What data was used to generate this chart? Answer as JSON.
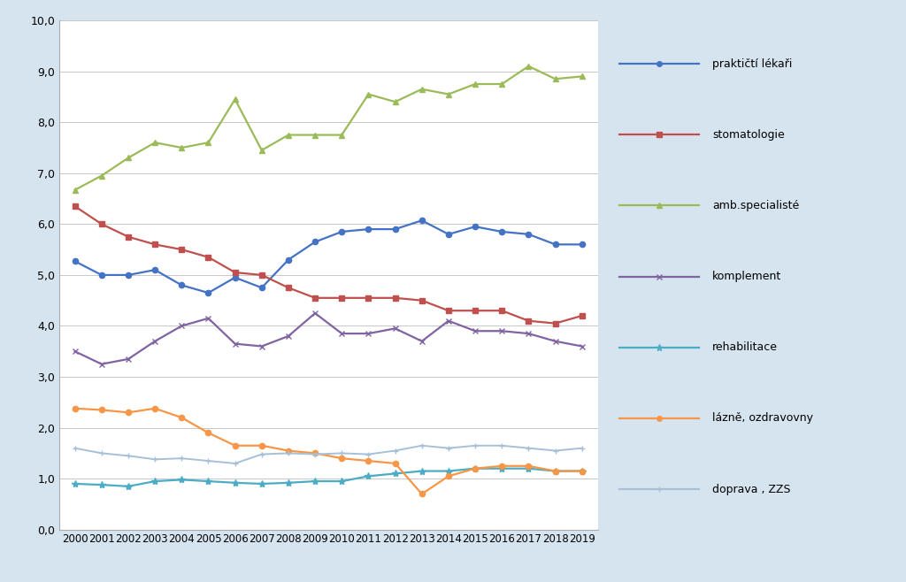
{
  "years": [
    2000,
    2001,
    2002,
    2003,
    2004,
    2005,
    2006,
    2007,
    2008,
    2009,
    2010,
    2011,
    2012,
    2013,
    2014,
    2015,
    2016,
    2017,
    2018,
    2019
  ],
  "series": {
    "praktičtí lékaři": {
      "values": [
        5.27,
        5.0,
        5.0,
        5.1,
        4.8,
        4.65,
        4.95,
        4.75,
        5.3,
        5.65,
        5.85,
        5.9,
        5.9,
        6.07,
        5.8,
        5.95,
        5.85,
        5.8,
        5.6,
        5.6
      ],
      "color": "#4472C4",
      "marker": "o",
      "markersize": 4.5,
      "linewidth": 1.6
    },
    "stomatologie": {
      "values": [
        6.35,
        6.0,
        5.75,
        5.6,
        5.5,
        5.35,
        5.05,
        5.0,
        4.75,
        4.55,
        4.55,
        4.55,
        4.55,
        4.5,
        4.3,
        4.3,
        4.3,
        4.1,
        4.05,
        4.2
      ],
      "color": "#C0504D",
      "marker": "s",
      "markersize": 4.5,
      "linewidth": 1.6
    },
    "amb.specialisté": {
      "values": [
        6.67,
        6.95,
        7.3,
        7.6,
        7.5,
        7.6,
        8.45,
        7.45,
        7.75,
        7.75,
        7.75,
        8.55,
        8.4,
        8.65,
        8.55,
        8.75,
        8.75,
        9.1,
        8.85,
        8.9
      ],
      "color": "#9BBB59",
      "marker": "^",
      "markersize": 5,
      "linewidth": 1.6
    },
    "komplement": {
      "values": [
        3.5,
        3.25,
        3.35,
        3.7,
        4.0,
        4.15,
        3.65,
        3.6,
        3.8,
        4.25,
        3.85,
        3.85,
        3.95,
        3.7,
        4.1,
        3.9,
        3.9,
        3.85,
        3.7,
        3.6
      ],
      "color": "#8064A2",
      "marker": "x",
      "markersize": 5,
      "linewidth": 1.6
    },
    "rehabilitace": {
      "values": [
        0.9,
        0.88,
        0.85,
        0.95,
        0.98,
        0.95,
        0.92,
        0.9,
        0.92,
        0.95,
        0.95,
        1.05,
        1.1,
        1.15,
        1.15,
        1.2,
        1.2,
        1.2,
        1.15,
        1.15
      ],
      "color": "#4BACC6",
      "marker": "*",
      "markersize": 6,
      "linewidth": 1.6
    },
    "lázně, ozdravovny": {
      "values": [
        2.38,
        2.35,
        2.3,
        2.38,
        2.2,
        1.9,
        1.65,
        1.65,
        1.55,
        1.5,
        1.4,
        1.35,
        1.3,
        0.7,
        1.05,
        1.2,
        1.25,
        1.25,
        1.15,
        1.15
      ],
      "color": "#F79646",
      "marker": "o",
      "markersize": 4.5,
      "linewidth": 1.6
    },
    "doprava , ZZS": {
      "values": [
        1.6,
        1.5,
        1.45,
        1.38,
        1.4,
        1.35,
        1.3,
        1.48,
        1.5,
        1.48,
        1.5,
        1.48,
        1.55,
        1.65,
        1.6,
        1.65,
        1.65,
        1.6,
        1.55,
        1.6
      ],
      "color": "#A6C0D8",
      "marker": "+",
      "markersize": 5,
      "linewidth": 1.4
    }
  },
  "ylim": [
    0.0,
    10.0
  ],
  "yticks": [
    0.0,
    1.0,
    2.0,
    3.0,
    4.0,
    5.0,
    6.0,
    7.0,
    8.0,
    9.0,
    10.0
  ],
  "ytick_labels": [
    "0,0",
    "1,0",
    "2,0",
    "3,0",
    "4,0",
    "5,0",
    "6,0",
    "7,0",
    "8,0",
    "9,0",
    "10,0"
  ],
  "background_color": "#D6E4F0",
  "plot_bg_color": "#FFFFFF",
  "legend_order": [
    "praktičtí lékaři",
    "stomatologie",
    "amb.specialisté",
    "komplement",
    "rehabilitace",
    "lázně, ozdravovny",
    "doprava , ZZS"
  ]
}
